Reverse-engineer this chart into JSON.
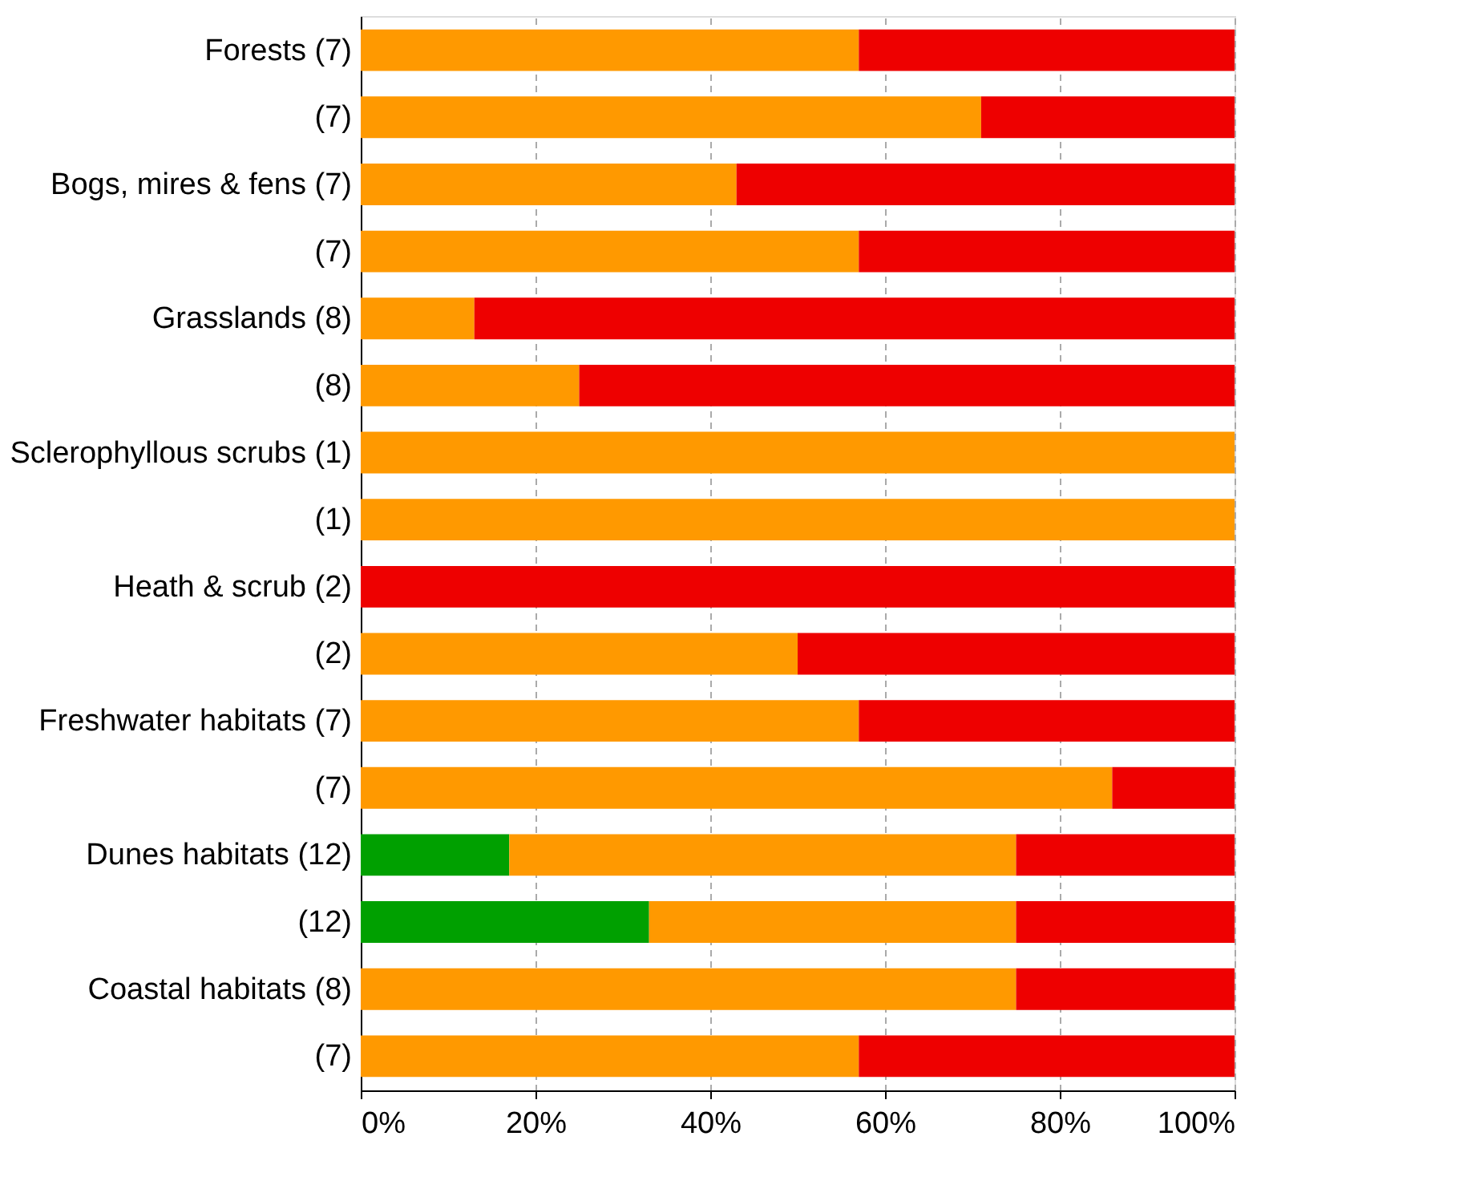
{
  "chart_data": {
    "type": "bar",
    "orientation": "horizontal",
    "stacked": true,
    "categories": [
      "Forests (7)",
      "(7)",
      "Bogs, mires & fens (7)",
      "(7)",
      "Grasslands (8)",
      "(8)",
      "Sclerophyllous scrubs (1)",
      "(1)",
      "Heath & scrub (2)",
      "(2)",
      "Freshwater habitats (7)",
      "(7)",
      "Dunes habitats (12)",
      "(12)",
      "Coastal habitats (8)",
      "(7)"
    ],
    "series": [
      {
        "color": "#00a000",
        "values": [
          null,
          null,
          null,
          null,
          null,
          null,
          null,
          null,
          null,
          null,
          null,
          null,
          17,
          33,
          null,
          null
        ]
      },
      {
        "color": "#ff9900",
        "values": [
          57,
          71,
          43,
          57,
          13,
          25,
          100,
          100,
          null,
          50,
          57,
          86,
          58,
          42,
          75,
          57
        ]
      },
      {
        "color": "#ee0000",
        "values": [
          43,
          29,
          57,
          43,
          87,
          75,
          null,
          null,
          100,
          50,
          43,
          14,
          25,
          25,
          25,
          43
        ]
      }
    ],
    "xlim": [
      0,
      100
    ],
    "xticks": [
      {
        "value": 0,
        "label": "0%"
      },
      {
        "value": 20,
        "label": "20%"
      },
      {
        "value": 40,
        "label": "40%"
      },
      {
        "value": 60,
        "label": "60%"
      },
      {
        "value": 80,
        "label": "80%"
      },
      {
        "value": 100,
        "label": "100%"
      }
    ],
    "grid": "x",
    "legend": false
  }
}
